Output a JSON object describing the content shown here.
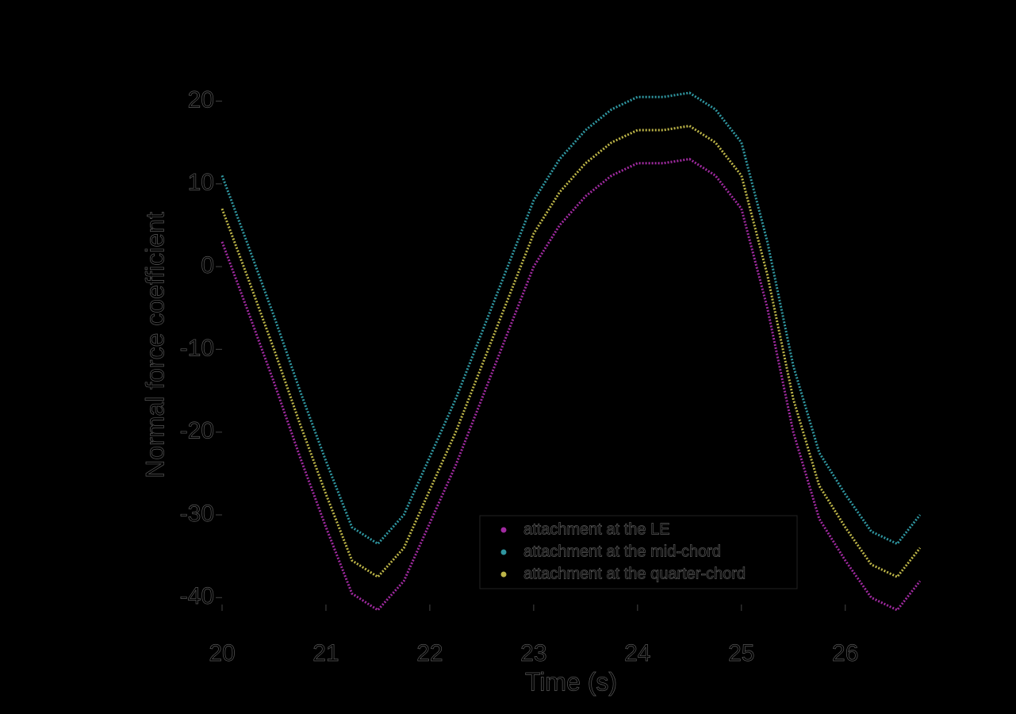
{
  "chart_data": {
    "type": "line",
    "x_label": "Time (s)",
    "y_label": "Normal force coefficient",
    "x": [
      20,
      20.25,
      20.5,
      20.75,
      21,
      21.25,
      21.5,
      21.75,
      22,
      22.25,
      22.5,
      22.75,
      23,
      23.25,
      23.5,
      23.75,
      24,
      24.25,
      24.5,
      24.75,
      25,
      25.25,
      25.5,
      25.75,
      26,
      26.25,
      26.5,
      26.72
    ],
    "series": [
      {
        "name": "attachment at the LE",
        "color": "#a02aa0",
        "values": [
          3,
          -5.4,
          -14,
          -23,
          -31.5,
          -39.5,
          -41.5,
          -38,
          -31,
          -24,
          -16,
          -8,
          0,
          5,
          8.5,
          11,
          12.5,
          12.5,
          13,
          11,
          7,
          -5,
          -20,
          -30.5,
          -35.5,
          -40,
          -41.5,
          -38
        ]
      },
      {
        "name": "attachment at the mid-chord",
        "color": "#2f96a0",
        "values": [
          11,
          2.6,
          -6,
          -15,
          -23.5,
          -31.5,
          -33.5,
          -30,
          -23,
          -16,
          -8,
          0,
          8,
          13,
          16.5,
          19,
          20.5,
          20.5,
          21,
          19,
          15,
          3,
          -12,
          -22.5,
          -27.5,
          -32,
          -33.5,
          -30
        ]
      },
      {
        "name": "attachment at the quarter-chord",
        "color": "#bdb548",
        "values": [
          7,
          -1.4,
          -10,
          -19,
          -27.5,
          -35.5,
          -37.5,
          -34,
          -27,
          -20,
          -12,
          -4,
          4,
          9,
          12.5,
          15,
          16.5,
          16.5,
          17,
          15,
          11,
          -1,
          -16,
          -26.5,
          -31.5,
          -36,
          -37.5,
          -34
        ]
      }
    ],
    "xlim": [
      20,
      26.72
    ],
    "xticks": [
      20,
      21,
      22,
      23,
      24,
      25,
      26
    ],
    "ylim": [
      -41.6,
      25.7
    ],
    "yticks": [
      -40,
      -30,
      -20,
      -10,
      0,
      10,
      20
    ],
    "legend": "lower right"
  }
}
